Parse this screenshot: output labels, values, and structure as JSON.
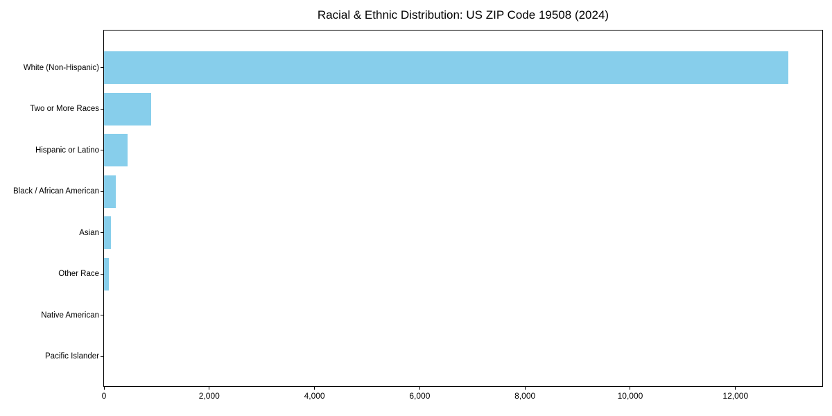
{
  "figure": {
    "background_color": "#ffffff",
    "text_color": "#000000",
    "spine_color": "#000000"
  },
  "chart_data": {
    "type": "bar",
    "orientation": "horizontal",
    "title": "Racial & Ethnic Distribution: US ZIP Code 19508 (2024)",
    "categories": [
      "White (Non-Hispanic)",
      "Two or More Races",
      "Hispanic or Latino",
      "Black / African American",
      "Asian",
      "Other Race",
      "Native American",
      "Pacific Islander"
    ],
    "values": [
      13000,
      890,
      450,
      225,
      135,
      90,
      0,
      0
    ],
    "bar_color": "#87CEEB",
    "xlim": [
      0,
      13650
    ],
    "x_ticks": [
      0,
      2000,
      4000,
      6000,
      8000,
      10000,
      12000
    ],
    "x_tick_labels": [
      "0",
      "2,000",
      "4,000",
      "6,000",
      "8,000",
      "10,000",
      "12,000"
    ],
    "xlabel": "",
    "ylabel": "",
    "grid": false,
    "legend_position": "none"
  }
}
